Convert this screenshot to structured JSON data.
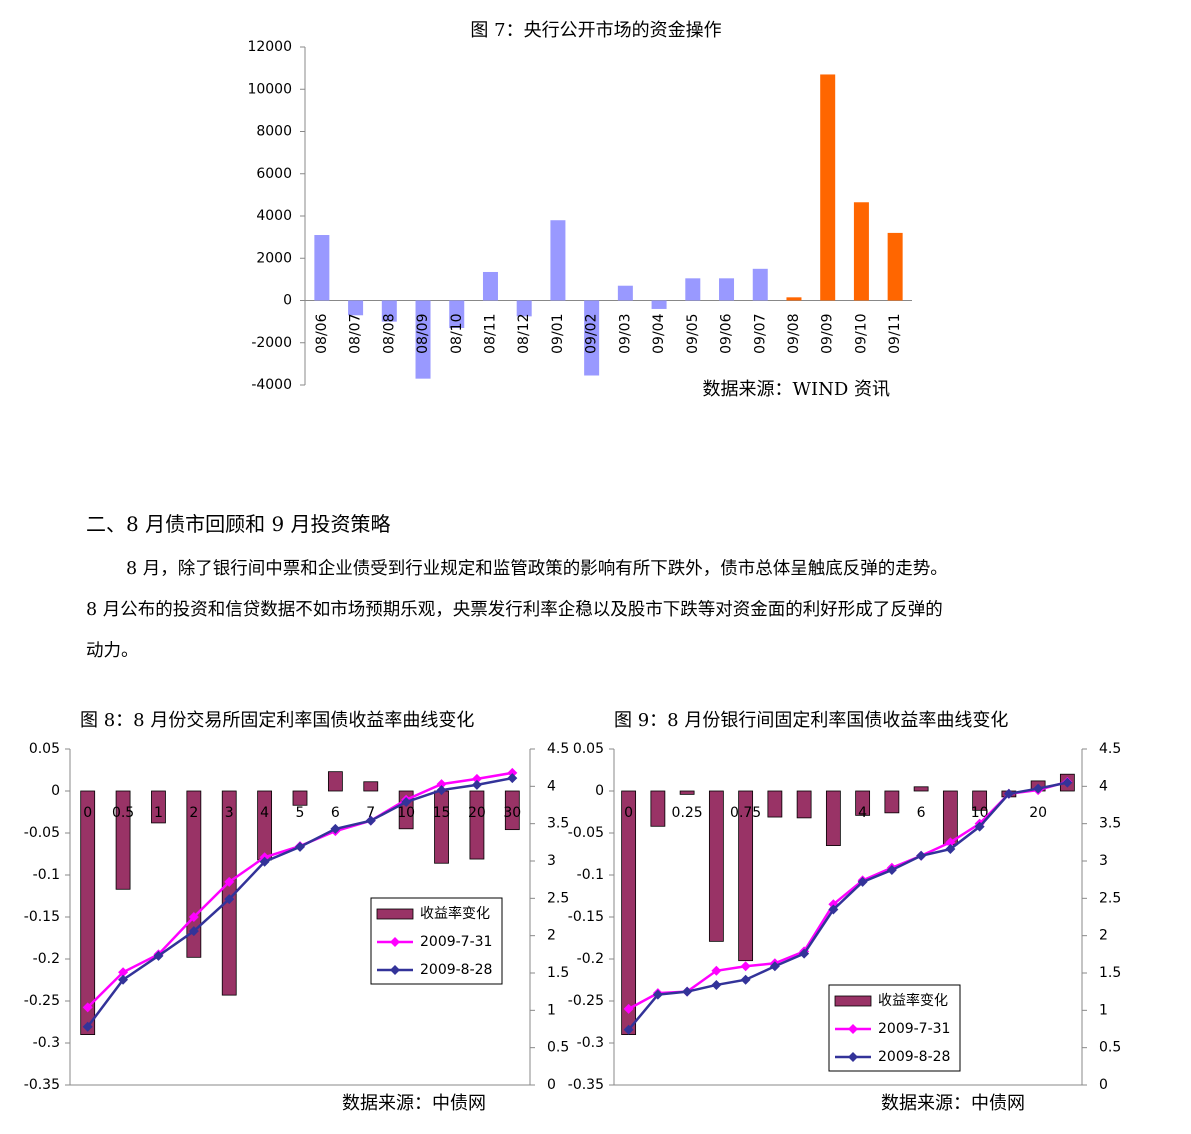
{
  "chart_data": [
    {
      "type": "bar",
      "title": "图 7：央行公开市场的资金操作",
      "source": "数据来源：WIND 资讯",
      "categories": [
        "08/06",
        "08/07",
        "08/08",
        "08/09",
        "08/10",
        "08/11",
        "08/12",
        "09/01",
        "09/02",
        "09/03",
        "09/04",
        "09/05",
        "09/06",
        "09/07",
        "09/08",
        "09/09",
        "09/10",
        "09/11"
      ],
      "values": [
        3100,
        -700,
        -1000,
        -3700,
        -1300,
        1350,
        -750,
        3800,
        -3550,
        700,
        -400,
        1050,
        1050,
        1500,
        150,
        10700,
        4650,
        3200
      ],
      "colors": [
        "#9999ff",
        "#9999ff",
        "#9999ff",
        "#9999ff",
        "#9999ff",
        "#9999ff",
        "#9999ff",
        "#9999ff",
        "#9999ff",
        "#9999ff",
        "#9999ff",
        "#9999ff",
        "#9999ff",
        "#9999ff",
        "#ff6600",
        "#ff6600",
        "#ff6600",
        "#ff6600"
      ],
      "ylim": [
        -4000,
        12000
      ],
      "yticks": [
        -4000,
        -2000,
        0,
        2000,
        4000,
        6000,
        8000,
        10000,
        12000
      ]
    },
    {
      "type": "combo",
      "title": "图 8：8 月份交易所固定利率国债收益率曲线变化",
      "source": "数据来源：中债网",
      "legend": "right",
      "categories": [
        "0",
        "0.5",
        "1",
        "2",
        "3",
        "4",
        "5",
        "6",
        "7",
        "10",
        "15",
        "20",
        "30"
      ],
      "series": [
        {
          "name": "收益率变化",
          "type": "bar",
          "color": "#993366",
          "values": [
            -0.29,
            -0.117,
            -0.038,
            -0.198,
            -0.243,
            -0.082,
            -0.017,
            0.023,
            0.011,
            -0.045,
            -0.086,
            -0.081,
            -0.046
          ]
        },
        {
          "name": "2009-7-31",
          "type": "line",
          "axis": "y2",
          "color": "#ff00ff",
          "values": [
            1.04,
            1.51,
            1.75,
            2.25,
            2.72,
            3.05,
            3.2,
            3.4,
            3.54,
            3.82,
            4.03,
            4.1,
            4.18
          ]
        },
        {
          "name": "2009-8-28",
          "type": "line",
          "axis": "y2",
          "color": "#333399",
          "values": [
            0.78,
            1.41,
            1.73,
            2.06,
            2.49,
            2.99,
            3.19,
            3.43,
            3.54,
            3.79,
            3.95,
            4.02,
            4.11
          ]
        }
      ],
      "ylim": [
        -0.35,
        0.05
      ],
      "yticks": [
        -0.35,
        -0.3,
        -0.25,
        -0.2,
        -0.15,
        -0.1,
        -0.05,
        0,
        0.05
      ],
      "y2lim": [
        0,
        4.5
      ],
      "y2ticks": [
        0,
        0.5,
        1,
        1.5,
        2,
        2.5,
        3,
        3.5,
        4,
        4.5
      ]
    },
    {
      "type": "combo",
      "title": "图 9：8 月份银行间固定利率国债收益率曲线变化",
      "source": "数据来源：中债网",
      "legend": "bottom-right",
      "categories": [
        "0",
        null,
        "0.25",
        null,
        "0.75",
        null,
        null,
        null,
        "4",
        null,
        "6",
        null,
        "10",
        null,
        "20",
        null
      ],
      "series": [
        {
          "name": "收益率变化",
          "type": "bar",
          "color": "#993366",
          "values": [
            -0.29,
            -0.042,
            -0.004,
            -0.179,
            -0.202,
            -0.031,
            -0.032,
            -0.065,
            -0.029,
            -0.026,
            0.005,
            -0.064,
            -0.023,
            -0.007,
            0.012,
            0.02
          ]
        },
        {
          "name": "2009-7-31",
          "type": "line",
          "axis": "y2",
          "color": "#ff00ff",
          "values": [
            1.02,
            1.23,
            1.25,
            1.53,
            1.59,
            1.63,
            1.79,
            2.42,
            2.74,
            2.91,
            3.07,
            3.25,
            3.5,
            3.9,
            3.95,
            4.06
          ]
        },
        {
          "name": "2009-8-28",
          "type": "line",
          "axis": "y2",
          "color": "#333399",
          "values": [
            0.74,
            1.21,
            1.25,
            1.34,
            1.41,
            1.59,
            1.76,
            2.35,
            2.72,
            2.88,
            3.07,
            3.16,
            3.46,
            3.9,
            3.97,
            4.05
          ]
        }
      ],
      "ylim": [
        -0.35,
        0.05
      ],
      "yticks": [
        -0.35,
        -0.3,
        -0.25,
        -0.2,
        -0.15,
        -0.1,
        -0.05,
        0,
        0.05
      ],
      "y2lim": [
        0,
        4.5
      ],
      "y2ticks": [
        0,
        0.5,
        1,
        1.5,
        2,
        2.5,
        3,
        3.5,
        4,
        4.5
      ]
    }
  ],
  "section": {
    "heading": "二、8 月债市回顾和 9 月投资策略",
    "paragraph": [
      "8 月，除了银行间中票和企业债受到行业规定和监管政策的影响有所下跌外，债市总体呈触底反弹的走势。",
      "8 月公布的投资和信贷数据不如市场预期乐观，央票发行利率企稳以及股市下跌等对资金面的利好形成了反弹的",
      "动力。"
    ]
  }
}
